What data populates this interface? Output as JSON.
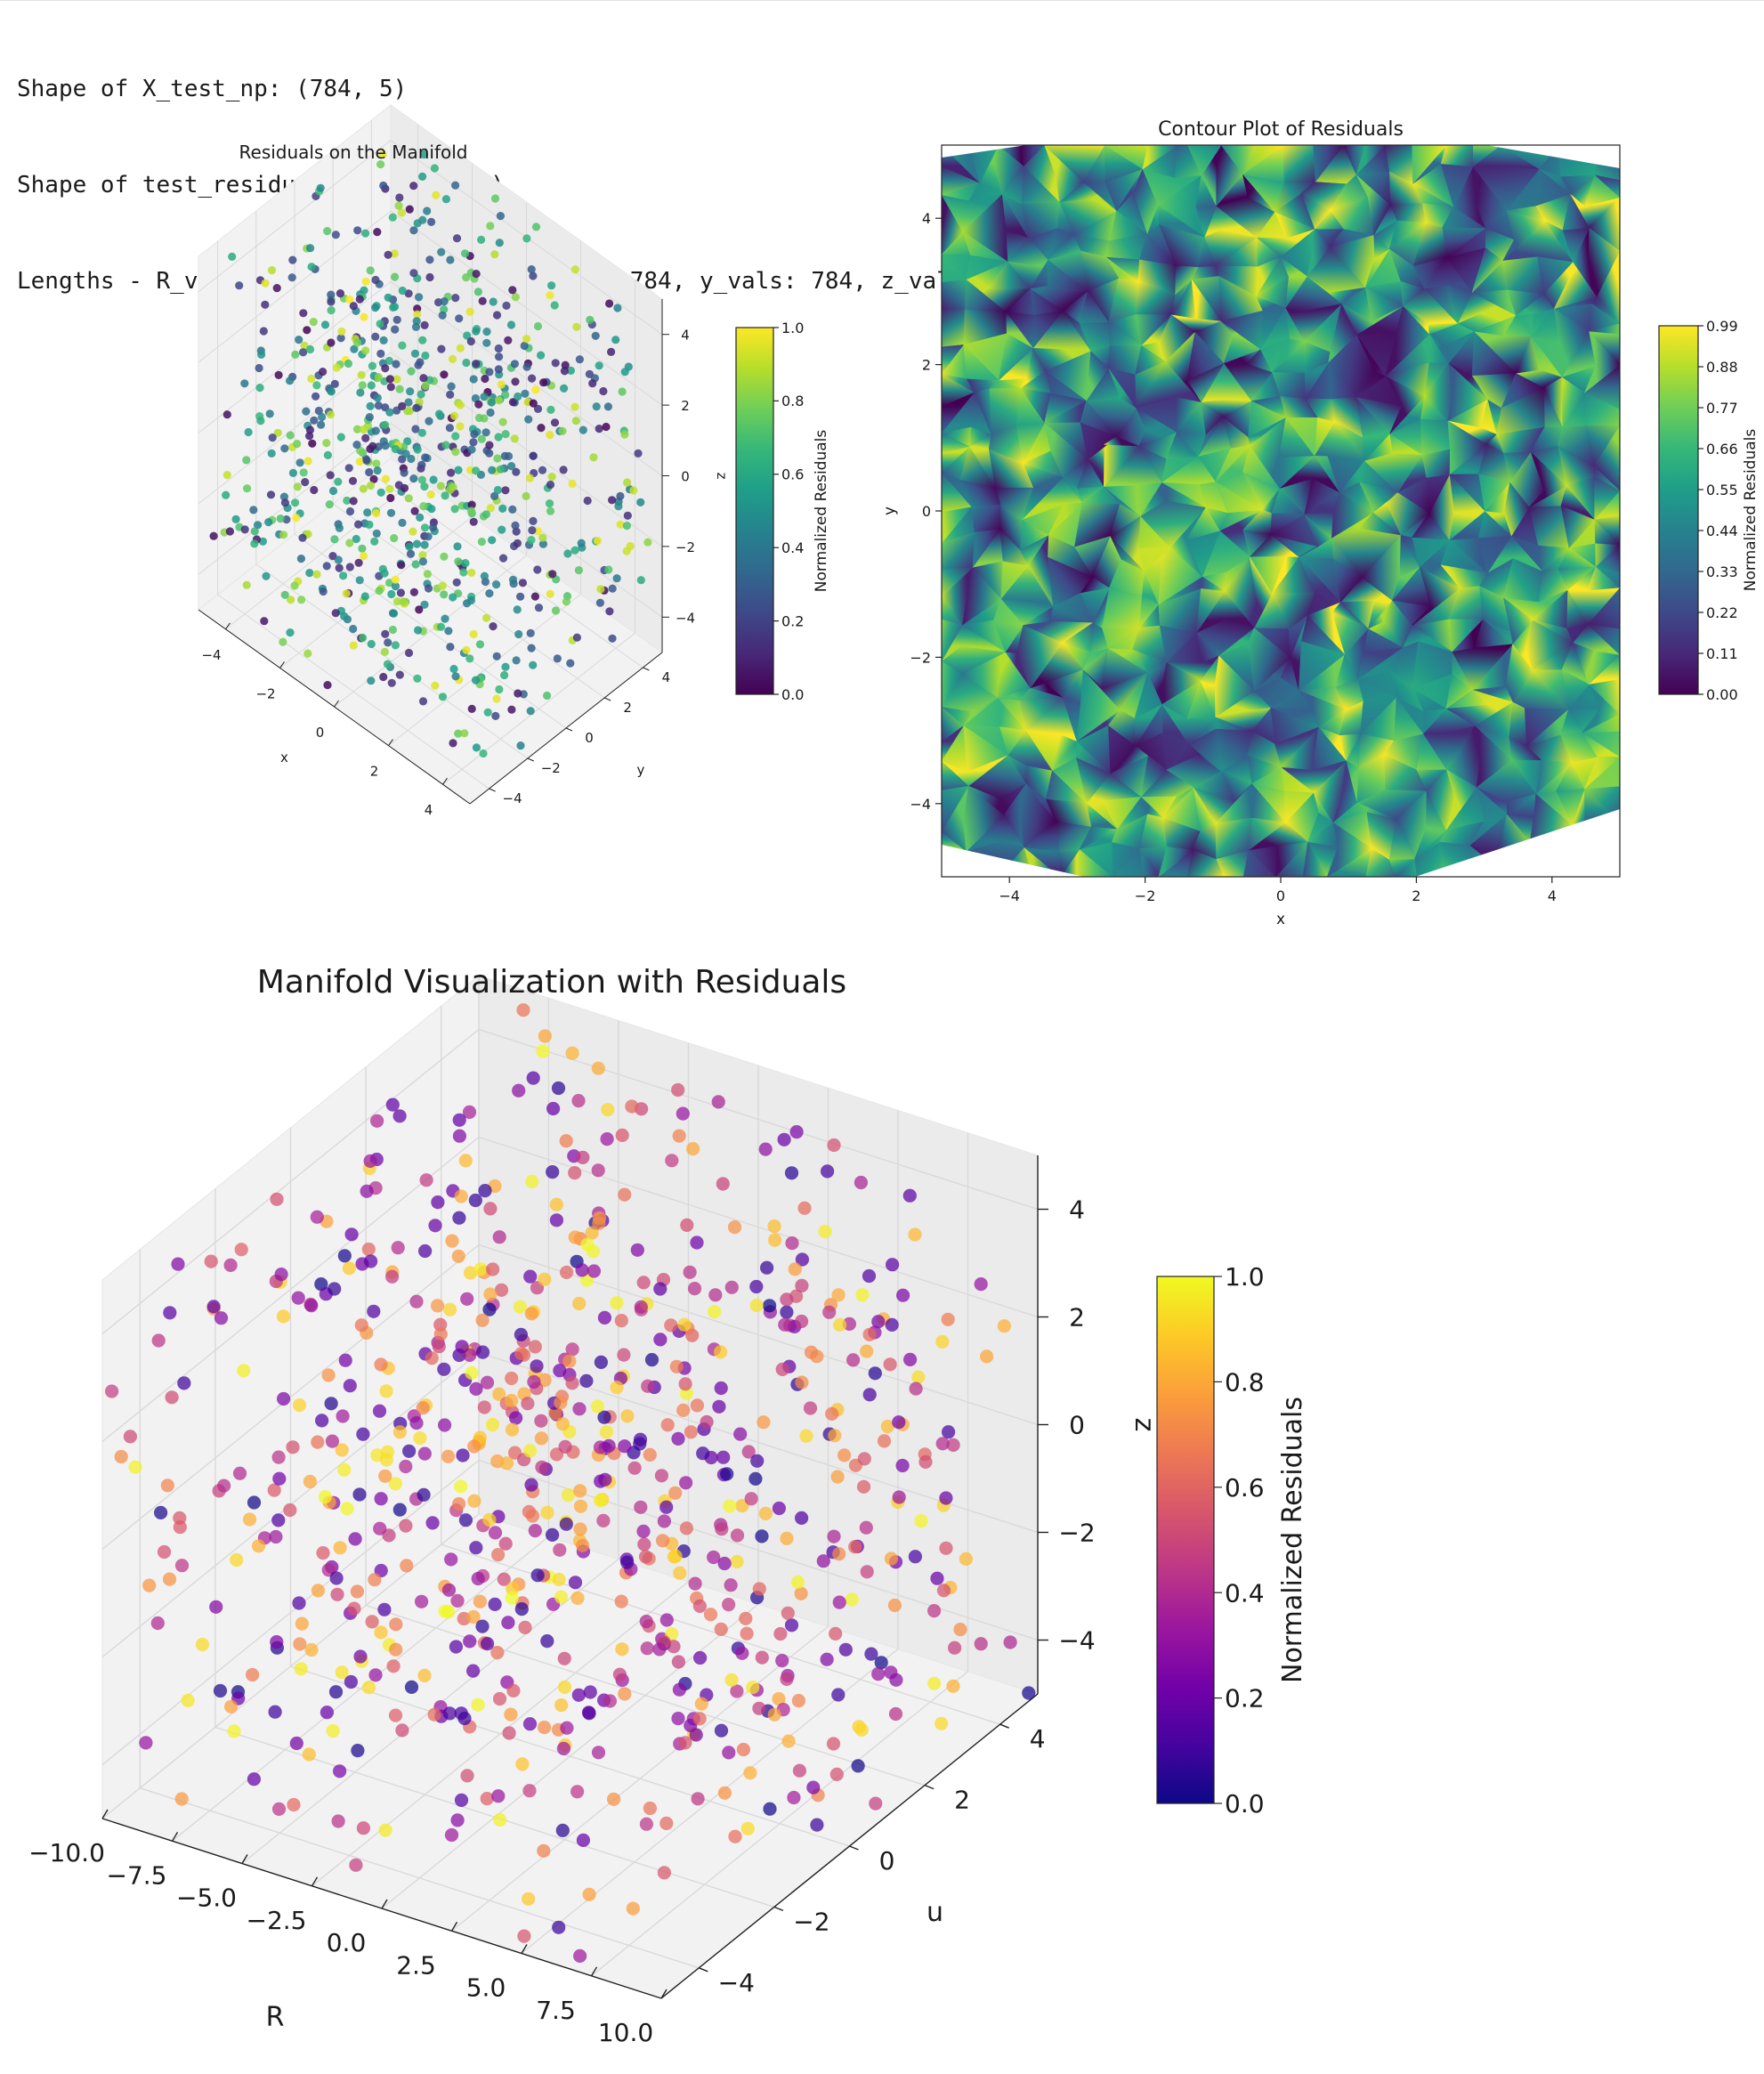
{
  "console": {
    "lines": [
      "Shape of X_test_np: (784, 5)",
      "Shape of test_residuals_np: (3920,)",
      "Lengths - R_vals: 784, u_vals: 784, x_vals: 784, y_vals: 784, z_vals: 784, residuals: 784"
    ]
  },
  "colors": {
    "viridis": [
      "#440154",
      "#482878",
      "#3e4989",
      "#31688e",
      "#26828e",
      "#1f9e89",
      "#35b779",
      "#6ece58",
      "#b5de2b",
      "#fde725"
    ],
    "plasma": [
      "#0d0887",
      "#46039f",
      "#7201a8",
      "#9c179e",
      "#bd3786",
      "#d8576b",
      "#ed7953",
      "#fb9f3a",
      "#fdca26",
      "#f0f921"
    ],
    "pane": "#f0f0f0",
    "grid": "#d9d9d9"
  },
  "chart_data": [
    {
      "type": "scatter",
      "projection": "3d",
      "title": "Residuals on the Manifold",
      "xlabel": "x",
      "ylabel": "y",
      "zlabel": "z",
      "xlim": [
        -5,
        5
      ],
      "ylim": [
        -5,
        5
      ],
      "zlim": [
        -5,
        5
      ],
      "xticks": [
        "−4",
        "−2",
        "0",
        "2",
        "4"
      ],
      "yticks": [
        "−4",
        "−2",
        "0",
        "2",
        "4"
      ],
      "zticks": [
        "−4",
        "−2",
        "0",
        "2",
        "4"
      ],
      "n_points": 784,
      "colormap": "viridis",
      "colorbar": {
        "label": "Normalized Residuals",
        "range": [
          0,
          1
        ],
        "ticks": [
          "0.0",
          "0.2",
          "0.4",
          "0.6",
          "0.8",
          "1.0"
        ]
      },
      "grid": true
    },
    {
      "type": "heatmap",
      "subtype": "tricontourf",
      "title": "Contour Plot of Residuals",
      "xlabel": "x",
      "ylabel": "y",
      "xlim": [
        -5,
        5
      ],
      "ylim": [
        -5,
        5
      ],
      "xticks": [
        "−4",
        "−2",
        "0",
        "2",
        "4"
      ],
      "yticks": [
        "−4",
        "−2",
        "0",
        "2",
        "4"
      ],
      "colormap": "viridis",
      "colorbar": {
        "label": "Normalized Residuals",
        "range": [
          0,
          0.99
        ],
        "ticks": [
          "0.00",
          "0.11",
          "0.22",
          "0.33",
          "0.44",
          "0.55",
          "0.66",
          "0.77",
          "0.88",
          "0.99"
        ]
      }
    },
    {
      "type": "scatter",
      "projection": "3d",
      "title": "Manifold Visualization with Residuals",
      "xlabel": "R",
      "ylabel": "u",
      "zlabel": "z",
      "xlim": [
        -10,
        10
      ],
      "ylim": [
        -5,
        5
      ],
      "zlim": [
        -5,
        5
      ],
      "xticks": [
        "−10.0",
        "−7.5",
        "−5.0",
        "−2.5",
        "0.0",
        "2.5",
        "5.0",
        "7.5",
        "10.0"
      ],
      "yticks": [
        "−4",
        "−2",
        "0",
        "2",
        "4"
      ],
      "zticks": [
        "−4",
        "−2",
        "0",
        "2",
        "4"
      ],
      "n_points": 784,
      "colormap": "plasma",
      "colorbar": {
        "label": "Normalized Residuals",
        "range": [
          0,
          1
        ],
        "ticks": [
          "0.0",
          "0.2",
          "0.4",
          "0.6",
          "0.8",
          "1.0"
        ]
      },
      "grid": true
    }
  ]
}
